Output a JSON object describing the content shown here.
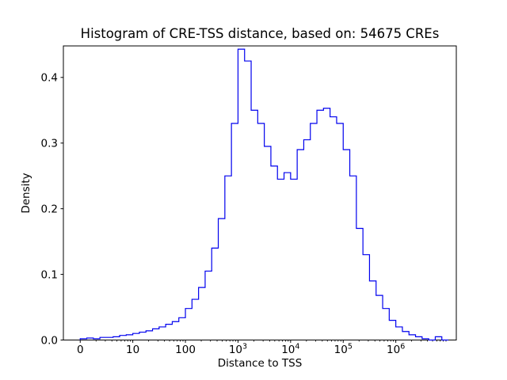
{
  "chart_data": {
    "type": "bar",
    "subtype": "step-histogram",
    "title": "Histogram of CRE-TSS distance, based on: 54675 CREs",
    "xlabel": "Distance to TSS",
    "ylabel": "Density",
    "line_color": "#0000ee",
    "axis_color": "#000000",
    "background": "#ffffff",
    "x_scale": "symlog (decade units: 0,10,100,1e3,1e4,1e5,1e6)",
    "x_axis": {
      "range_decades": [
        -0.32,
        7.15
      ],
      "major_ticks": [
        {
          "pos": 0,
          "label": "0"
        },
        {
          "pos": 1,
          "label": "10"
        },
        {
          "pos": 2,
          "label": "100"
        },
        {
          "pos": 3,
          "label": "10",
          "sup": "3"
        },
        {
          "pos": 4,
          "label": "10",
          "sup": "4"
        },
        {
          "pos": 5,
          "label": "10",
          "sup": "5"
        },
        {
          "pos": 6,
          "label": "10",
          "sup": "6"
        }
      ],
      "minor_ticks": "log-spaced 2-9 per decade"
    },
    "y_axis": {
      "range": [
        0,
        0.448
      ],
      "ticks": [
        0.0,
        0.1,
        0.2,
        0.3,
        0.4
      ]
    },
    "bins": {
      "start_decade": 0.0,
      "width_decades": 0.125,
      "densities": [
        0.002,
        0.003,
        0.002,
        0.004,
        0.004,
        0.005,
        0.007,
        0.008,
        0.01,
        0.012,
        0.014,
        0.017,
        0.02,
        0.024,
        0.028,
        0.034,
        0.048,
        0.062,
        0.08,
        0.105,
        0.14,
        0.185,
        0.25,
        0.33,
        0.443,
        0.425,
        0.35,
        0.33,
        0.295,
        0.265,
        0.245,
        0.255,
        0.245,
        0.29,
        0.305,
        0.33,
        0.35,
        0.353,
        0.34,
        0.33,
        0.29,
        0.25,
        0.17,
        0.13,
        0.09,
        0.068,
        0.048,
        0.03,
        0.02,
        0.013,
        0.008,
        0.005,
        0.002,
        0.0,
        0.005,
        0.0
      ]
    }
  }
}
